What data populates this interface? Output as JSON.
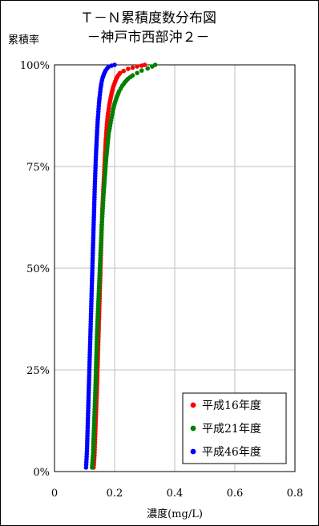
{
  "chart_data": {
    "type": "scatter",
    "title": "Ｔ－Ｎ累積度数分布図",
    "subtitle": "－神戸市西部沖２－",
    "ylabel": "累積率",
    "xlabel": "濃度(mg/L)",
    "xlim": [
      0,
      0.8
    ],
    "ylim": [
      0,
      100
    ],
    "x_ticks": [
      "0",
      "0.2",
      "0.4",
      "0.6",
      "0.8"
    ],
    "y_ticks": [
      "0%",
      "25%",
      "50%",
      "75%",
      "100%"
    ],
    "grid": true,
    "legend_position": "bottom-right",
    "series": [
      {
        "name": "平成16年度",
        "color": "#ff0000",
        "x": [
          0.13,
          0.133,
          0.135,
          0.137,
          0.139,
          0.141,
          0.143,
          0.145,
          0.147,
          0.149,
          0.151,
          0.153,
          0.155,
          0.157,
          0.159,
          0.161,
          0.163,
          0.165,
          0.167,
          0.169,
          0.171,
          0.173,
          0.175,
          0.178,
          0.182,
          0.186,
          0.19,
          0.195,
          0.2,
          0.205,
          0.21,
          0.218,
          0.23,
          0.245,
          0.26,
          0.275,
          0.29,
          0.3
        ],
        "y": [
          1,
          4,
          8,
          12,
          16,
          20,
          25,
          30,
          35,
          40,
          45,
          50,
          55,
          60,
          64,
          67,
          70,
          73,
          76,
          79,
          82,
          84,
          86,
          88,
          90,
          91.5,
          93,
          94.5,
          95.5,
          96.5,
          97.2,
          98,
          98.5,
          99,
          99.3,
          99.6,
          99.8,
          100
        ]
      },
      {
        "name": "平成21年度",
        "color": "#008000",
        "x": [
          0.125,
          0.128,
          0.13,
          0.132,
          0.134,
          0.136,
          0.138,
          0.14,
          0.142,
          0.145,
          0.148,
          0.151,
          0.154,
          0.157,
          0.16,
          0.163,
          0.166,
          0.169,
          0.172,
          0.176,
          0.18,
          0.185,
          0.19,
          0.195,
          0.2,
          0.207,
          0.215,
          0.225,
          0.235,
          0.245,
          0.26,
          0.275,
          0.29,
          0.31,
          0.325,
          0.335
        ],
        "y": [
          1,
          4,
          8,
          12,
          16,
          20,
          25,
          30,
          35,
          40,
          45,
          50,
          55,
          60,
          64,
          68,
          71,
          74,
          77,
          80,
          83,
          85,
          87,
          89,
          90.5,
          92,
          93.5,
          94.8,
          95.8,
          96.6,
          97.4,
          98,
          98.6,
          99.1,
          99.6,
          100
        ]
      },
      {
        "name": "平成46年度",
        "color": "#0000ff",
        "x": [
          0.105,
          0.108,
          0.11,
          0.112,
          0.114,
          0.116,
          0.118,
          0.12,
          0.122,
          0.124,
          0.126,
          0.128,
          0.13,
          0.132,
          0.134,
          0.136,
          0.138,
          0.14,
          0.142,
          0.144,
          0.146,
          0.148,
          0.15,
          0.153,
          0.156,
          0.16,
          0.165,
          0.17,
          0.175,
          0.18,
          0.19,
          0.2
        ],
        "y": [
          1,
          5,
          10,
          15,
          20,
          25,
          30,
          35,
          40,
          45,
          50,
          55,
          60,
          65,
          70,
          74,
          78,
          81,
          84,
          86.5,
          88.5,
          90.5,
          92,
          94,
          95.5,
          96.8,
          97.8,
          98.6,
          99.1,
          99.5,
          99.8,
          100
        ]
      }
    ]
  }
}
